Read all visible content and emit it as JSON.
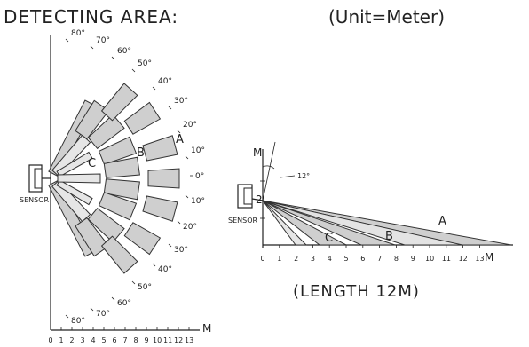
{
  "header": {
    "title": "DETECTING   AREA:",
    "unit": "(Unit=Meter)"
  },
  "top_view": {
    "sensor_label": "SENSOR",
    "angle_labels": [
      "80°",
      "70°",
      "60°",
      "50°",
      "40°",
      "30°",
      "20°",
      "10°",
      "0°",
      "10°",
      "20°",
      "30°",
      "40°",
      "50°",
      "60°",
      "70°",
      "80°"
    ],
    "zone_labels": [
      "A",
      "B",
      "C"
    ],
    "axis_unit": "M",
    "x_ticks": [
      "0",
      "1",
      "2",
      "3",
      "4",
      "5",
      "6",
      "7",
      "8",
      "9",
      "10",
      "11",
      "12",
      "13"
    ]
  },
  "side_view": {
    "y_axis_label": "M",
    "angle_label": "12°",
    "height_label": "2",
    "sensor_label": "SENSOR",
    "zone_labels": [
      "A",
      "B",
      "C"
    ],
    "axis_unit": "M",
    "x_ticks": [
      "0",
      "1",
      "2",
      "3",
      "4",
      "5",
      "6",
      "7",
      "8",
      "9",
      "10",
      "11",
      "12",
      "13"
    ],
    "caption": "(LENGTH 12M)"
  }
}
